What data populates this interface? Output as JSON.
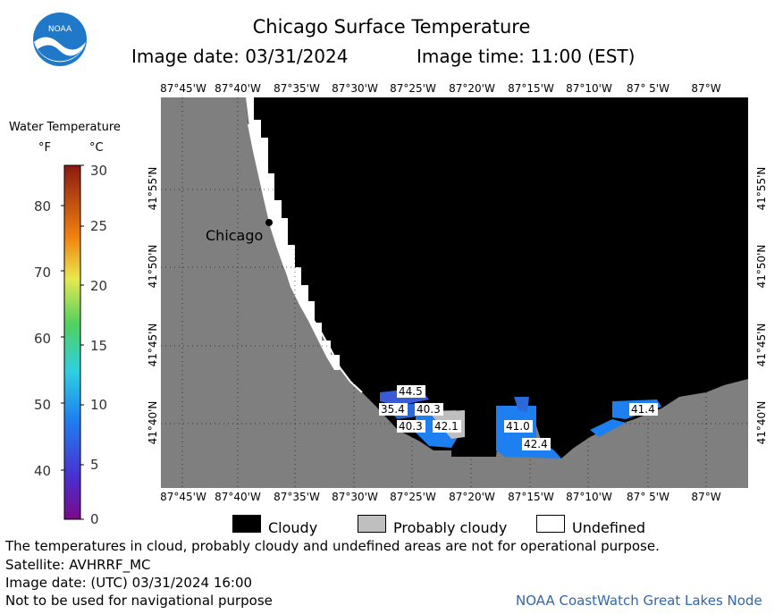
{
  "header": {
    "title": "Chicago Surface Temperature",
    "image_date_label": "Image date: 03/31/2024",
    "image_time_label": "Image time: 11:00 (EST)",
    "logo_text": "NOAA"
  },
  "map": {
    "lon_labels": [
      "87°45'W",
      "87°40'W",
      "87°35'W",
      "87°30'W",
      "87°25'W",
      "87°20'W",
      "87°15'W",
      "87°10'W",
      "87° 5'W",
      "87°W"
    ],
    "lat_labels": [
      "41°55'N",
      "41°50'N",
      "41°45'N",
      "41°40'N"
    ],
    "city_label": "Chicago",
    "temp_readings": [
      "44.5",
      "35.4",
      "40.3",
      "40.3",
      "42.1",
      "41.0",
      "42.4",
      "41.4"
    ],
    "colors": {
      "land": "#7f7f7f",
      "cloud": "#000000",
      "undefined": "#ffffff",
      "probably_cloudy": "#bfbfbf"
    }
  },
  "legend": {
    "title": "Water Temperature",
    "unit_f": "°F",
    "unit_c": "°C",
    "f_ticks": [
      "80",
      "70",
      "60",
      "50",
      "40"
    ],
    "c_ticks": [
      "30",
      "25",
      "20",
      "15",
      "10",
      "5",
      "0"
    ],
    "cloudy_label": "Cloudy",
    "probably_cloudy_label": "Probably cloudy",
    "undefined_label": "Undefined"
  },
  "footer": {
    "disclaimer": "The temperatures in cloud, probably cloudy and undefined areas are not for operational purpose.",
    "satellite": "Satellite: AVHRRF_MC",
    "utc_date": "Image date: (UTC) 03/31/2024  16:00",
    "nav_warning": "Not to be used for navigational purpose",
    "credit": "NOAA CoastWatch Great Lakes Node"
  }
}
